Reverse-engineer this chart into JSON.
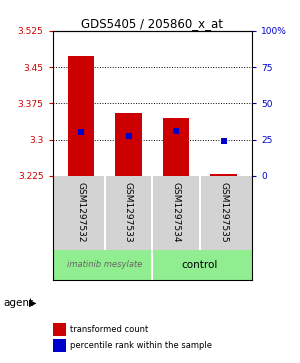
{
  "title": "GDS5405 / 205860_x_at",
  "samples": [
    "GSM1297532",
    "GSM1297533",
    "GSM1297534",
    "GSM1297535"
  ],
  "bar_bottoms": [
    3.225,
    3.225,
    3.225,
    3.225
  ],
  "bar_tops": [
    3.472,
    3.355,
    3.345,
    3.229
  ],
  "blue_values": [
    3.315,
    3.307,
    3.318,
    3.298
  ],
  "bar_color": "#cc0000",
  "blue_color": "#0000cc",
  "ylim": [
    3.225,
    3.525
  ],
  "yticks_left": [
    3.225,
    3.3,
    3.375,
    3.45,
    3.525
  ],
  "yticks_right_vals": [
    3.225,
    3.3,
    3.375,
    3.45,
    3.525
  ],
  "yticks_right_labels": [
    "0",
    "25",
    "50",
    "75",
    "100%"
  ],
  "grid_vals": [
    3.3,
    3.375,
    3.45
  ],
  "agent_labels": [
    "imatinib mesylate",
    "control"
  ],
  "group_bg_color": "#d3d3d3",
  "agent_color": "#90ee90",
  "left_color": "#cc0000",
  "right_color": "#0000cc",
  "legend_items": [
    {
      "color": "#cc0000",
      "label": "transformed count"
    },
    {
      "color": "#0000cc",
      "label": "percentile rank within the sample"
    }
  ]
}
